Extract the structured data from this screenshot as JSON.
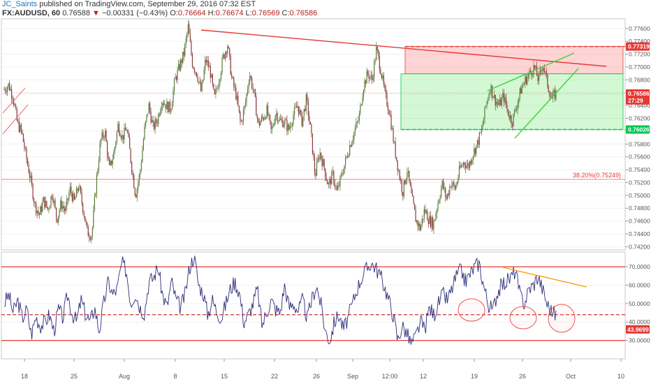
{
  "header": {
    "author": "JC_Saints",
    "published_text": "published on TradingView.com, September 29, 2016 07:32 EST",
    "symbol": "FX:AUDUSD, 60",
    "last": "0.76588",
    "change_arrow": "▼",
    "change": "−0.00331 (−0.43%)",
    "o_label": "O:",
    "o_value": "0.76664",
    "h_label": "H:",
    "h_value": "0.76674",
    "l_label": "L:",
    "l_value": "0.76569",
    "c_label": "C:",
    "c_value": "0.76586"
  },
  "price_axis": {
    "ticks": [
      0.776,
      0.774,
      0.772,
      0.77,
      0.768,
      0.766,
      0.764,
      0.762,
      0.76,
      0.758,
      0.756,
      0.754,
      0.752,
      0.75,
      0.748,
      0.746,
      0.744,
      0.742
    ],
    "tick_labels": [
      "0.77600",
      "0.77400",
      "0.77200",
      "0.77000",
      "0.76800",
      "0.76600",
      "0.76400",
      "0.76200",
      "0.76000",
      "0.75800",
      "0.75600",
      "0.75400",
      "0.75200",
      "0.75000",
      "0.74800",
      "0.74600",
      "0.74400",
      "0.74200"
    ],
    "badges": [
      {
        "label": "0.77319",
        "value": 0.77319,
        "color": "#e53935"
      },
      {
        "label": "0.76586",
        "value": 0.76586,
        "color": "#e53935"
      },
      {
        "label": "27:29",
        "value": 0.7648,
        "color": "#e53935"
      },
      {
        "label": "0.76026",
        "value": 0.76026,
        "color": "#00c853"
      }
    ]
  },
  "fib_label": "38.20%(0.75249)",
  "osc_axis": {
    "ticks": [
      70,
      60,
      50,
      40,
      30
    ],
    "tick_labels": [
      "70.0000",
      "60.0000",
      "50.0000",
      "40.0000",
      "30.0000"
    ],
    "badge": {
      "label": "43.9699",
      "value": 43.9699,
      "color": "#e53935"
    }
  },
  "time_axis": [
    "18",
    "25",
    "Aug",
    "8",
    "15",
    "22",
    "26",
    "Sep",
    "12:00",
    "12",
    "19",
    "26",
    "Oct",
    "10"
  ],
  "colors": {
    "accent": "#e53935",
    "green": "#00c853",
    "osc_line": "#2b2b7a",
    "trend_orange": "#ff9800"
  },
  "chart_data": [
    {
      "type": "candlestick",
      "symbol": "FX:AUDUSD",
      "interval": "60",
      "ylim": [
        0.7415,
        0.7775
      ],
      "summary": {
        "high": 0.7762,
        "low": 0.7421,
        "last": 0.76586
      },
      "levels": {
        "resistance_zone": [
          0.76894,
          0.77319
        ],
        "support_zone": [
          0.76026,
          0.76894
        ],
        "fib_382": 0.75249,
        "last_price": 0.76586
      },
      "path": [
        0.7665,
        0.7672,
        0.7655,
        0.7612,
        0.7598,
        0.756,
        0.7525,
        0.7485,
        0.747,
        0.7492,
        0.7478,
        0.7505,
        0.7462,
        0.7488,
        0.7475,
        0.751,
        0.749,
        0.7515,
        0.748,
        0.7442,
        0.7438,
        0.752,
        0.7585,
        0.76,
        0.754,
        0.7565,
        0.761,
        0.759,
        0.7605,
        0.755,
        0.75,
        0.7535,
        0.76,
        0.764,
        0.7605,
        0.7618,
        0.765,
        0.764,
        0.7635,
        0.768,
        0.77,
        0.772,
        0.7762,
        0.7705,
        0.769,
        0.766,
        0.7712,
        0.7695,
        0.765,
        0.768,
        0.7715,
        0.7735,
        0.768,
        0.7655,
        0.761,
        0.764,
        0.769,
        0.766,
        0.761,
        0.762,
        0.7632,
        0.7598,
        0.763,
        0.7615,
        0.7615,
        0.7602,
        0.7625,
        0.764,
        0.7615,
        0.765,
        0.76,
        0.753,
        0.7568,
        0.7545,
        0.7515,
        0.7532,
        0.7505,
        0.753,
        0.7555,
        0.758,
        0.76,
        0.762,
        0.767,
        0.769,
        0.768,
        0.7728,
        0.7695,
        0.7655,
        0.763,
        0.758,
        0.754,
        0.7505,
        0.754,
        0.7498,
        0.7462,
        0.7448,
        0.7478,
        0.7462,
        0.7455,
        0.7488,
        0.7518,
        0.7495,
        0.752,
        0.751,
        0.754,
        0.7552,
        0.7545,
        0.7565,
        0.758,
        0.76,
        0.764,
        0.767,
        0.765,
        0.764,
        0.7655,
        0.763,
        0.7615,
        0.764,
        0.7665,
        0.768,
        0.769,
        0.77,
        0.768,
        0.7705,
        0.7675,
        0.765,
        0.7659
      ]
    },
    {
      "type": "line",
      "name": "oscillator",
      "ylim": [
        20,
        78
      ],
      "last": 43.9699,
      "bands": [
        70,
        30
      ],
      "values": [
        50,
        55,
        45,
        52,
        42,
        47,
        33,
        43,
        38,
        40,
        44,
        35,
        47,
        42,
        55,
        45,
        40,
        52,
        44,
        40,
        48,
        35,
        50,
        62,
        55,
        58,
        72,
        68,
        50,
        56,
        48,
        45,
        62,
        64,
        70,
        55,
        48,
        62,
        52,
        48,
        55,
        70,
        76,
        60,
        56,
        44,
        52,
        46,
        42,
        50,
        58,
        62,
        56,
        40,
        44,
        50,
        58,
        38,
        45,
        52,
        47,
        45,
        60,
        48,
        50,
        46,
        52,
        42,
        52,
        60,
        50,
        35,
        30,
        40,
        44,
        36,
        42,
        50,
        58,
        64,
        68,
        72,
        70,
        66,
        60,
        52,
        44,
        30,
        38,
        34,
        28,
        32,
        40,
        36,
        48,
        44,
        50,
        55,
        52,
        58,
        65,
        68,
        62,
        66,
        70,
        72,
        60,
        50,
        46,
        56,
        60,
        62,
        64,
        68,
        55,
        50,
        58,
        60,
        65,
        58,
        50,
        46,
        44
      ]
    }
  ]
}
